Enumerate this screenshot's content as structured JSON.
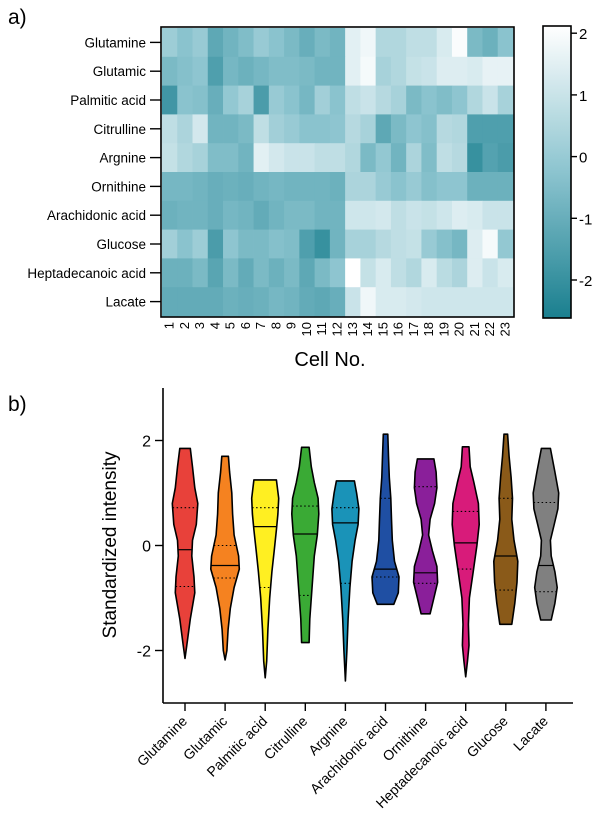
{
  "chart_data": [
    {
      "type": "heatmap",
      "panel_label": "a)",
      "rows": [
        "Glutamine",
        "Glutamic",
        "Palmitic acid",
        "Citrulline",
        "Argnine",
        "Ornithine",
        "Arachidonic acid",
        "Glucose",
        "Heptadecanoic acid",
        "Lacate"
      ],
      "columns": [
        "1",
        "2",
        "3",
        "4",
        "5",
        "6",
        "7",
        "8",
        "9",
        "10",
        "11",
        "12",
        "13",
        "14",
        "15",
        "16",
        "17",
        "18",
        "19",
        "20",
        "21",
        "22",
        "23"
      ],
      "xlabel": "Cell No.",
      "colorbar": {
        "range": [
          -2.6,
          2.1
        ],
        "ticks": [
          "2",
          "1",
          "0",
          "-1",
          "-2"
        ],
        "tick_values": [
          2,
          1,
          0,
          -1,
          -2
        ],
        "low_color": "#1a7f8f",
        "high_color": "#ffffff"
      },
      "values": [
        [
          0.1,
          -0.3,
          0.0,
          -1.2,
          -0.8,
          -0.5,
          0.0,
          -0.3,
          -0.6,
          -1.0,
          -0.6,
          -0.8,
          1.5,
          1.8,
          0.5,
          0.5,
          0.8,
          0.8,
          1.3,
          2.0,
          -0.6,
          -0.9,
          -0.3
        ],
        [
          -0.6,
          -0.4,
          -0.2,
          -1.5,
          -0.7,
          -0.9,
          -0.7,
          -0.5,
          -0.5,
          -0.6,
          -0.8,
          -0.8,
          1.5,
          1.9,
          0.3,
          0.5,
          0.9,
          1.0,
          1.4,
          1.4,
          1.3,
          1.6,
          1.6
        ],
        [
          -1.8,
          -0.3,
          -0.4,
          -1.0,
          -0.1,
          0.3,
          -1.6,
          0.0,
          -0.3,
          -0.7,
          0.2,
          -0.3,
          0.8,
          1.0,
          0.6,
          0.3,
          -0.6,
          -0.3,
          -0.5,
          -0.2,
          0.5,
          1.0,
          0.3
        ],
        [
          0.8,
          0.4,
          1.2,
          -0.8,
          -0.8,
          -0.6,
          0.8,
          0.2,
          0.0,
          -0.3,
          -0.3,
          -0.2,
          0.6,
          0.3,
          -1.2,
          -0.6,
          -0.2,
          -0.4,
          0.6,
          0.5,
          -1.5,
          -1.5,
          -1.5
        ],
        [
          0.9,
          0.5,
          0.3,
          -0.5,
          -0.5,
          -0.8,
          1.5,
          1.2,
          1.0,
          1.0,
          0.8,
          0.8,
          0.5,
          -0.6,
          -0.1,
          -0.8,
          0.4,
          -0.5,
          0.8,
          0.6,
          -2.0,
          -1.4,
          -1.6
        ],
        [
          -0.7,
          -0.7,
          -0.8,
          -1.0,
          -0.9,
          -1.0,
          -0.8,
          -0.7,
          -0.8,
          -0.8,
          -0.8,
          -0.9,
          0.4,
          0.4,
          0.0,
          -0.3,
          0.0,
          -0.4,
          -0.2,
          -0.2,
          -0.9,
          -0.9,
          -0.9
        ],
        [
          -0.9,
          -0.8,
          -0.8,
          -1.0,
          -0.7,
          -0.8,
          -1.1,
          -0.8,
          -0.6,
          -0.6,
          -0.8,
          -0.8,
          1.1,
          1.1,
          1.2,
          0.8,
          1.0,
          0.9,
          1.1,
          1.4,
          1.3,
          1.0,
          1.0
        ],
        [
          0.2,
          -0.3,
          0.1,
          -1.6,
          -0.2,
          -0.6,
          -0.6,
          -0.4,
          -0.5,
          -1.5,
          -2.0,
          -0.8,
          0.3,
          0.3,
          0.6,
          0.8,
          0.9,
          0.0,
          -0.4,
          -0.7,
          1.4,
          1.9,
          -0.1
        ],
        [
          -0.9,
          -0.9,
          -0.6,
          -1.3,
          -0.6,
          -1.1,
          -0.6,
          -0.9,
          -0.6,
          -1.2,
          -0.6,
          -0.2,
          2.1,
          0.9,
          1.3,
          0.8,
          0.5,
          1.3,
          0.7,
          0.4,
          1.4,
          1.0,
          1.3
        ],
        [
          -1.1,
          -1.1,
          -1.1,
          -1.1,
          -0.9,
          -1.0,
          -0.9,
          -0.7,
          -0.8,
          -1.1,
          -1.2,
          -1.0,
          1.0,
          1.8,
          1.3,
          1.3,
          1.2,
          1.1,
          1.1,
          1.1,
          1.1,
          1.1,
          1.1
        ]
      ]
    },
    {
      "type": "violin",
      "panel_label": "b)",
      "ylabel": "Standardized intensity",
      "ylim": [
        -3,
        3
      ],
      "yticks": [
        "2",
        "0",
        "-2"
      ],
      "ytick_values": [
        2,
        0,
        -2
      ],
      "categories": [
        "Glutamine",
        "Glutamic",
        "Palmitic acid",
        "Citrulline",
        "Argnine",
        "Arachidonic acid",
        "Ornithine",
        "Heptadecanoic acid",
        "Glucose",
        "Lacate"
      ],
      "colors": [
        "#e8413a",
        "#f58220",
        "#ffef22",
        "#3aaa35",
        "#1a93b8",
        "#1f4fa3",
        "#8a1f9a",
        "#d81b7a",
        "#8a5a19",
        "#808080"
      ],
      "median": [
        -0.08,
        -0.38,
        0.36,
        0.22,
        0.43,
        -0.45,
        -0.52,
        0.05,
        -0.2,
        -0.38
      ],
      "q1": [
        -0.78,
        -0.62,
        -0.8,
        -0.95,
        -0.72,
        -0.6,
        -0.72,
        -0.45,
        -0.85,
        -0.88
      ],
      "q3": [
        0.72,
        0.0,
        0.72,
        0.75,
        0.72,
        0.9,
        1.12,
        0.65,
        0.9,
        0.82
      ],
      "min": [
        -2.15,
        -2.18,
        -2.52,
        -1.85,
        -2.58,
        -1.12,
        -1.3,
        -2.5,
        -1.5,
        -1.42
      ],
      "max": [
        1.85,
        1.7,
        1.25,
        1.87,
        1.23,
        2.12,
        1.65,
        1.88,
        2.12,
        1.85
      ],
      "profiles": [
        [
          [
            -2.15,
            0
          ],
          [
            -1.9,
            0.12
          ],
          [
            -1.4,
            0.35
          ],
          [
            -0.9,
            0.65
          ],
          [
            -0.6,
            0.6
          ],
          [
            -0.2,
            0.45
          ],
          [
            0.1,
            0.5
          ],
          [
            0.4,
            0.75
          ],
          [
            0.8,
            0.85
          ],
          [
            1.1,
            0.65
          ],
          [
            1.5,
            0.5
          ],
          [
            1.85,
            0.35
          ]
        ],
        [
          [
            -2.18,
            0
          ],
          [
            -2.0,
            0.12
          ],
          [
            -1.6,
            0.2
          ],
          [
            -1.2,
            0.35
          ],
          [
            -0.8,
            0.6
          ],
          [
            -0.45,
            0.95
          ],
          [
            -0.2,
            0.9
          ],
          [
            0.2,
            0.6
          ],
          [
            0.6,
            0.5
          ],
          [
            1.0,
            0.45
          ],
          [
            1.4,
            0.3
          ],
          [
            1.7,
            0.22
          ]
        ],
        [
          [
            -2.52,
            0
          ],
          [
            -2.2,
            0.1
          ],
          [
            -1.6,
            0.18
          ],
          [
            -1.0,
            0.3
          ],
          [
            -0.5,
            0.45
          ],
          [
            -0.1,
            0.6
          ],
          [
            0.3,
            0.75
          ],
          [
            0.6,
            0.85
          ],
          [
            0.9,
            0.9
          ],
          [
            1.25,
            0.75
          ]
        ],
        [
          [
            -1.85,
            0.25
          ],
          [
            -1.4,
            0.3
          ],
          [
            -1.0,
            0.4
          ],
          [
            -0.6,
            0.5
          ],
          [
            -0.2,
            0.6
          ],
          [
            0.2,
            0.8
          ],
          [
            0.6,
            0.9
          ],
          [
            0.9,
            0.85
          ],
          [
            1.2,
            0.6
          ],
          [
            1.5,
            0.4
          ],
          [
            1.87,
            0.25
          ]
        ],
        [
          [
            -2.58,
            0
          ],
          [
            -2.0,
            0.1
          ],
          [
            -1.4,
            0.18
          ],
          [
            -0.8,
            0.3
          ],
          [
            -0.3,
            0.45
          ],
          [
            0.1,
            0.65
          ],
          [
            0.4,
            0.85
          ],
          [
            0.7,
            0.9
          ],
          [
            1.0,
            0.75
          ],
          [
            1.23,
            0.6
          ]
        ],
        [
          [
            -1.12,
            0.55
          ],
          [
            -0.9,
            0.85
          ],
          [
            -0.6,
            0.9
          ],
          [
            -0.3,
            0.6
          ],
          [
            0.1,
            0.45
          ],
          [
            0.5,
            0.4
          ],
          [
            0.9,
            0.35
          ],
          [
            1.3,
            0.25
          ],
          [
            1.7,
            0.2
          ],
          [
            2.12,
            0.15
          ]
        ],
        [
          [
            -1.3,
            0.3
          ],
          [
            -1.0,
            0.55
          ],
          [
            -0.7,
            0.8
          ],
          [
            -0.4,
            0.75
          ],
          [
            -0.1,
            0.45
          ],
          [
            0.2,
            0.2
          ],
          [
            0.5,
            0.3
          ],
          [
            0.8,
            0.6
          ],
          [
            1.1,
            0.75
          ],
          [
            1.4,
            0.7
          ],
          [
            1.65,
            0.55
          ]
        ],
        [
          [
            -2.5,
            0
          ],
          [
            -2.2,
            0.12
          ],
          [
            -1.9,
            0.22
          ],
          [
            -1.5,
            0.18
          ],
          [
            -1.0,
            0.25
          ],
          [
            -0.5,
            0.5
          ],
          [
            0.0,
            0.75
          ],
          [
            0.4,
            0.9
          ],
          [
            0.8,
            0.85
          ],
          [
            1.2,
            0.55
          ],
          [
            1.5,
            0.3
          ],
          [
            1.88,
            0.22
          ]
        ],
        [
          [
            -1.5,
            0.4
          ],
          [
            -1.1,
            0.6
          ],
          [
            -0.7,
            0.75
          ],
          [
            -0.3,
            0.8
          ],
          [
            0.1,
            0.55
          ],
          [
            0.5,
            0.4
          ],
          [
            0.9,
            0.45
          ],
          [
            1.3,
            0.35
          ],
          [
            1.7,
            0.22
          ],
          [
            2.12,
            0.12
          ]
        ],
        [
          [
            -1.42,
            0.35
          ],
          [
            -1.1,
            0.6
          ],
          [
            -0.8,
            0.75
          ],
          [
            -0.5,
            0.6
          ],
          [
            -0.2,
            0.35
          ],
          [
            0.1,
            0.3
          ],
          [
            0.4,
            0.55
          ],
          [
            0.7,
            0.8
          ],
          [
            1.0,
            0.85
          ],
          [
            1.4,
            0.6
          ],
          [
            1.85,
            0.3
          ]
        ]
      ]
    }
  ]
}
